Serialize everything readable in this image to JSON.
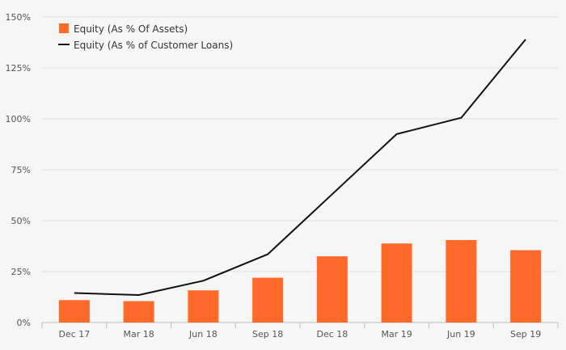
{
  "chart_data": {
    "type": "bar",
    "categories": [
      "Dec 17",
      "Mar 18",
      "Jun 18",
      "Sep 18",
      "Dec 18",
      "Mar 19",
      "Jun 19",
      "Sep 19"
    ],
    "series": [
      {
        "name": "Equity (As % Of Assets)",
        "type": "bar",
        "color": "#ff6a2b",
        "values": [
          11,
          10.5,
          15.8,
          22,
          32.5,
          38.8,
          40.5,
          35.5
        ]
      },
      {
        "name": "Equity (As % of Customer Loans)",
        "type": "line",
        "color": "#111111",
        "values": [
          14.5,
          13.5,
          20.5,
          33.5,
          63,
          92.5,
          100.5,
          139
        ]
      }
    ],
    "y_ticks": [
      "0%",
      "25%",
      "50%",
      "75%",
      "100%",
      "125%",
      "150%"
    ],
    "ylim": [
      0,
      150
    ],
    "grid": true,
    "legend_position": "top-left"
  }
}
